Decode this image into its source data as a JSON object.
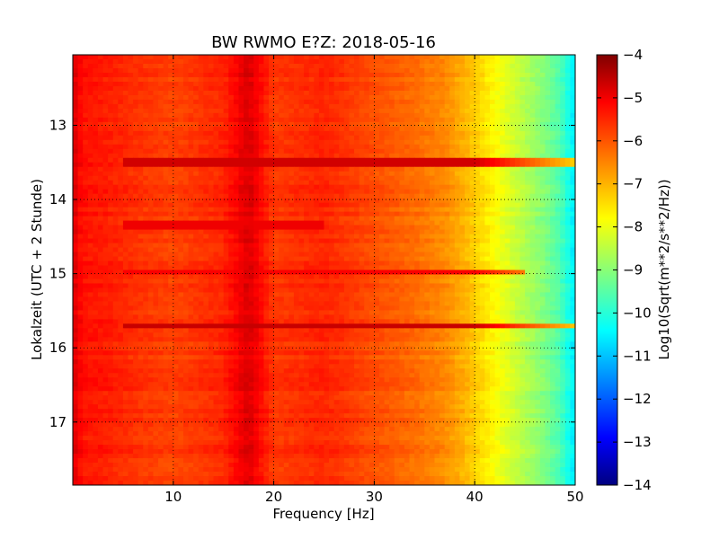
{
  "chart_data": {
    "type": "heatmap",
    "title": "BW RWMO E?Z: 2018-05-16",
    "xlabel": "Frequency [Hz]",
    "ylabel": "Lokalzeit (UTC + 2 Stunde)",
    "xlim": [
      0,
      50
    ],
    "ylim": [
      17.85,
      12.05
    ],
    "y_axis_inverted": true,
    "x_ticks": [
      10,
      20,
      30,
      40,
      50
    ],
    "x_tick_labels": [
      "10",
      "20",
      "30",
      "40",
      "50"
    ],
    "y_ticks": [
      13,
      14,
      15,
      16,
      17
    ],
    "y_tick_labels": [
      "13",
      "14",
      "15",
      "16",
      "17"
    ],
    "grid": true,
    "colorbar": {
      "label": "Log10(Sqrt(m**2/s**2/Hz))",
      "range": [
        -14,
        -4
      ],
      "colormap": "jet",
      "ticks": [
        -4,
        -5,
        -6,
        -7,
        -8,
        -9,
        -10,
        -11,
        -12,
        -13,
        -14
      ],
      "tick_labels": [
        "−4",
        "−5",
        "−6",
        "−7",
        "−8",
        "−9",
        "−10",
        "−11",
        "−12",
        "−13",
        "−14"
      ]
    },
    "frequency_profile": {
      "frequency_hz": [
        0,
        0.5,
        1,
        3,
        6,
        10,
        15,
        17.5,
        20,
        25,
        30,
        34,
        37,
        39,
        41,
        43,
        45,
        47,
        48.5,
        49.6,
        50
      ],
      "log10_amplitude": [
        -4.8,
        -5.2,
        -5.4,
        -5.5,
        -5.7,
        -5.9,
        -5.6,
        -4.9,
        -5.8,
        -5.6,
        -6.0,
        -6.3,
        -6.6,
        -7.0,
        -7.5,
        -8.0,
        -8.5,
        -9.0,
        -9.5,
        -10.2,
        -10.5
      ]
    },
    "annotations_lines": [
      {
        "hour": 13.5,
        "log10_amplitude": -4.8,
        "f_range": [
          5,
          50
        ]
      },
      {
        "hour": 15.73,
        "log10_amplitude": -4.7,
        "f_range": [
          5,
          50
        ]
      },
      {
        "hour": 14.35,
        "log10_amplitude": -5.1,
        "f_range": [
          5,
          25
        ]
      },
      {
        "hour": 14.97,
        "log10_amplitude": -5.2,
        "f_range": [
          5,
          45
        ]
      }
    ]
  },
  "colors": {
    "jet_stops": [
      "#000080",
      "#0000ff",
      "#00ffff",
      "#ffff00",
      "#ff0000",
      "#800000"
    ]
  }
}
